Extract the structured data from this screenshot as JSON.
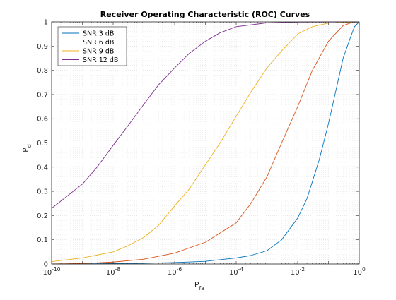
{
  "chart_data": {
    "type": "line",
    "title": "Receiver Operating Characteristic (ROC) Curves",
    "xlabel": {
      "main": "P",
      "sub": "fa"
    },
    "ylabel": {
      "main": "P",
      "sub": "d"
    },
    "xscale": "log",
    "xlim": [
      1e-10,
      1
    ],
    "ylim": [
      0,
      1
    ],
    "grid": "major-and-minor",
    "legend_position": "top-left",
    "x_ticks": [
      {
        "value": 1e-10,
        "base": "10",
        "exp": "-10"
      },
      {
        "value": 1e-08,
        "base": "10",
        "exp": "-8"
      },
      {
        "value": 1e-06,
        "base": "10",
        "exp": "-6"
      },
      {
        "value": 0.0001,
        "base": "10",
        "exp": "-4"
      },
      {
        "value": 0.01,
        "base": "10",
        "exp": "-2"
      },
      {
        "value": 1,
        "base": "10",
        "exp": "0"
      }
    ],
    "y_ticks": [
      {
        "value": 0,
        "label": "0"
      },
      {
        "value": 0.1,
        "label": "0.1"
      },
      {
        "value": 0.2,
        "label": "0.2"
      },
      {
        "value": 0.3,
        "label": "0.3"
      },
      {
        "value": 0.4,
        "label": "0.4"
      },
      {
        "value": 0.5,
        "label": "0.5"
      },
      {
        "value": 0.6,
        "label": "0.6"
      },
      {
        "value": 0.7,
        "label": "0.7"
      },
      {
        "value": 0.8,
        "label": "0.8"
      },
      {
        "value": 0.9,
        "label": "0.9"
      },
      {
        "value": 1,
        "label": "1"
      }
    ],
    "series": [
      {
        "name": "SNR 3 dB",
        "color": "#0072BD",
        "x": [
          1e-10,
          1e-09,
          1e-08,
          1e-07,
          1e-06,
          1e-05,
          0.0001,
          0.0003,
          0.001,
          0.003,
          0.01,
          0.02,
          0.05,
          0.1,
          0.2,
          0.3,
          0.5,
          0.7,
          1
        ],
        "y": [
          0.0,
          0.0005,
          0.0015,
          0.003,
          0.006,
          0.011,
          0.025,
          0.035,
          0.055,
          0.1,
          0.19,
          0.27,
          0.43,
          0.58,
          0.75,
          0.85,
          0.93,
          0.98,
          1.0
        ]
      },
      {
        "name": "SNR 6 dB",
        "color": "#D95319",
        "x": [
          1e-10,
          1e-09,
          1e-08,
          1e-07,
          1e-06,
          1e-05,
          0.0001,
          0.0003,
          0.001,
          0.003,
          0.01,
          0.03,
          0.1,
          0.3,
          0.6,
          1
        ],
        "y": [
          0.0,
          0.002,
          0.008,
          0.02,
          0.045,
          0.09,
          0.17,
          0.25,
          0.36,
          0.5,
          0.65,
          0.8,
          0.92,
          0.985,
          0.998,
          1.0
        ]
      },
      {
        "name": "SNR 9 dB",
        "color": "#EDB120",
        "x": [
          1e-10,
          1e-09,
          1e-08,
          3e-08,
          1e-07,
          3e-07,
          1e-06,
          3e-06,
          1e-05,
          3e-05,
          0.0001,
          0.0003,
          0.001,
          0.003,
          0.01,
          0.03,
          0.1,
          1
        ],
        "y": [
          0.01,
          0.025,
          0.05,
          0.075,
          0.11,
          0.16,
          0.24,
          0.31,
          0.41,
          0.5,
          0.61,
          0.71,
          0.81,
          0.88,
          0.95,
          0.98,
          0.995,
          1.0
        ]
      },
      {
        "name": "SNR 12 dB",
        "color": "#7E2F8E",
        "x": [
          1e-10,
          1e-09,
          3e-09,
          1e-08,
          3e-08,
          1e-07,
          3e-07,
          1e-06,
          3e-06,
          1e-05,
          3e-05,
          0.0001,
          0.001,
          0.01,
          1
        ],
        "y": [
          0.23,
          0.33,
          0.4,
          0.49,
          0.57,
          0.66,
          0.74,
          0.81,
          0.87,
          0.92,
          0.955,
          0.98,
          0.996,
          0.999,
          1.0
        ]
      }
    ]
  }
}
